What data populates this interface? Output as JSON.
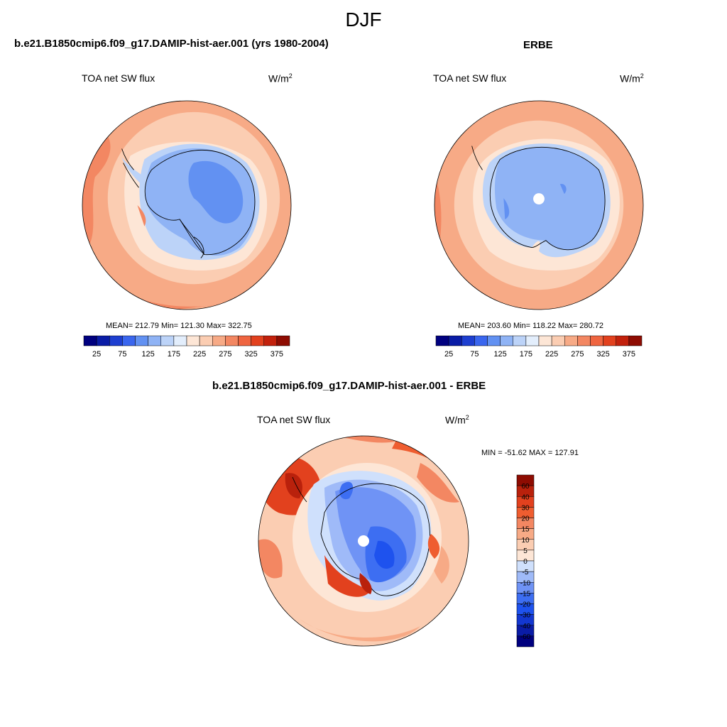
{
  "figure": {
    "title": "DJF"
  },
  "panels": {
    "model": {
      "title": "b.e21.B1850cmip6.f09_g17.DAMIP-hist-aer.001 (yrs 1980-2004)",
      "field": "TOA net SW flux",
      "units": "W/m",
      "units_sup": "2",
      "stats": "MEAN= 212.79  Min= 121.30  Max= 322.75"
    },
    "obs": {
      "title": "ERBE",
      "field": "TOA net SW flux",
      "units": "W/m",
      "units_sup": "2",
      "stats": "MEAN= 203.60  Min= 118.22  Max= 280.72"
    },
    "diff": {
      "title": "b.e21.B1850cmip6.f09_g17.DAMIP-hist-aer.001 - ERBE",
      "field": "TOA net SW flux",
      "units": "W/m",
      "units_sup": "2",
      "stats": "MIN = -51.62 MAX = 127.91"
    }
  },
  "colorbars": {
    "abs": {
      "colors": [
        "#00007f",
        "#0a1ca6",
        "#1e3fd0",
        "#3a66ee",
        "#6291f2",
        "#8fb3f5",
        "#bcd3f8",
        "#e3eefc",
        "#fde6d6",
        "#fbcdb2",
        "#f7aa86",
        "#f38762",
        "#ef6540",
        "#e2411e",
        "#c2210c",
        "#8e0c02"
      ],
      "tick_labels": [
        "25",
        "75",
        "125",
        "175",
        "225",
        "275",
        "325",
        "375"
      ]
    },
    "diff": {
      "colors": [
        "#00007f",
        "#0a1ca6",
        "#1337d0",
        "#1e52ee",
        "#3d6ef2",
        "#6f93f5",
        "#9fbaf8",
        "#cfe0fc",
        "#fde6d6",
        "#fbcdb2",
        "#f7aa86",
        "#f38762",
        "#ef5d30",
        "#e2411e",
        "#b9210c",
        "#8e0c02"
      ],
      "tick_labels": [
        "60",
        "40",
        "30",
        "20",
        "15",
        "10",
        "5",
        "0",
        "-5",
        "-10",
        "-15",
        "-20",
        "-30",
        "-40",
        "-60"
      ]
    }
  }
}
